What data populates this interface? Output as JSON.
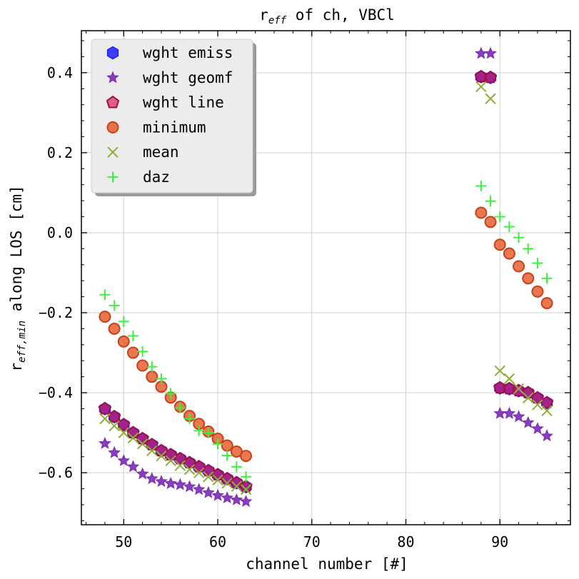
{
  "chart_data": {
    "type": "scatter",
    "title": "r",
    "title_sub": "eff",
    "title_rest": " of ch, VBCl",
    "xlabel": "channel number [#]",
    "ylabel_main": "r",
    "ylabel_sub": "eff,min",
    "ylabel_rest": " along LOS [cm]",
    "xlim": [
      45.5,
      97.5
    ],
    "ylim": [
      -0.73,
      0.505
    ],
    "xticks": [
      50,
      60,
      70,
      80,
      90
    ],
    "xtick_labels": [
      "50",
      "60",
      "70",
      "80",
      "90"
    ],
    "yticks": [
      0.4,
      0.2,
      0.0,
      -0.2,
      -0.4,
      -0.6
    ],
    "ytick_labels": [
      "0.4",
      "0.2",
      "0.0",
      "−0.2",
      "−0.4",
      "−0.6"
    ],
    "grid": true,
    "legend_position": "top-left",
    "series": [
      {
        "name": "wght emiss",
        "marker": "hexagon",
        "color": "#1f1fff",
        "x": [
          48,
          49,
          50,
          51,
          52,
          53,
          54,
          55,
          56,
          57,
          58,
          59,
          60,
          61,
          62,
          63,
          88,
          89,
          90,
          91,
          92,
          93,
          94,
          95
        ],
        "y": [
          -0.44,
          -0.46,
          -0.48,
          -0.5,
          -0.515,
          -0.53,
          -0.545,
          -0.555,
          -0.565,
          -0.575,
          -0.585,
          -0.595,
          -0.605,
          -0.615,
          -0.625,
          -0.635,
          0.39,
          0.388,
          -0.388,
          -0.39,
          -0.395,
          -0.4,
          -0.413,
          -0.425
        ]
      },
      {
        "name": "wght geomf",
        "marker": "star",
        "color": "#7b2ab5",
        "x": [
          48,
          49,
          50,
          51,
          52,
          53,
          54,
          55,
          56,
          57,
          58,
          59,
          60,
          61,
          62,
          63,
          88,
          89,
          90,
          91,
          92,
          93,
          94,
          95
        ],
        "y": [
          -0.527,
          -0.55,
          -0.57,
          -0.585,
          -0.603,
          -0.615,
          -0.622,
          -0.627,
          -0.63,
          -0.635,
          -0.642,
          -0.65,
          -0.657,
          -0.663,
          -0.668,
          -0.672,
          0.448,
          0.448,
          -0.452,
          -0.452,
          -0.46,
          -0.475,
          -0.49,
          -0.508
        ]
      },
      {
        "name": "wght line",
        "marker": "pentagon",
        "color": "#d8134f",
        "x": [
          48,
          49,
          50,
          51,
          52,
          53,
          54,
          55,
          56,
          57,
          58,
          59,
          60,
          61,
          62,
          63,
          88,
          89,
          90,
          91,
          92,
          93,
          94,
          95
        ],
        "y": [
          -0.44,
          -0.46,
          -0.48,
          -0.5,
          -0.515,
          -0.53,
          -0.545,
          -0.555,
          -0.565,
          -0.575,
          -0.585,
          -0.595,
          -0.605,
          -0.615,
          -0.625,
          -0.635,
          0.39,
          0.388,
          -0.388,
          -0.39,
          -0.395,
          -0.4,
          -0.413,
          -0.425
        ]
      },
      {
        "name": "minimum",
        "marker": "circle",
        "color": "#e0521f",
        "x": [
          48,
          49,
          50,
          51,
          52,
          53,
          54,
          55,
          56,
          57,
          58,
          59,
          60,
          61,
          62,
          63,
          88,
          89,
          90,
          91,
          92,
          93,
          94,
          95
        ],
        "y": [
          -0.21,
          -0.24,
          -0.272,
          -0.3,
          -0.332,
          -0.36,
          -0.385,
          -0.412,
          -0.435,
          -0.458,
          -0.478,
          -0.497,
          -0.515,
          -0.532,
          -0.547,
          -0.558,
          0.05,
          0.027,
          -0.03,
          -0.052,
          -0.084,
          -0.114,
          -0.147,
          -0.176
        ]
      },
      {
        "name": "mean",
        "marker": "x",
        "color": "#8cae3a",
        "x": [
          48,
          49,
          50,
          51,
          52,
          53,
          54,
          55,
          56,
          57,
          58,
          59,
          60,
          61,
          62,
          63,
          88,
          89,
          90,
          91,
          92,
          93,
          94,
          95
        ],
        "y": [
          -0.465,
          -0.483,
          -0.5,
          -0.513,
          -0.528,
          -0.545,
          -0.558,
          -0.57,
          -0.582,
          -0.592,
          -0.6,
          -0.61,
          -0.618,
          -0.626,
          -0.634,
          -0.642,
          0.365,
          0.335,
          -0.345,
          -0.365,
          -0.39,
          -0.413,
          -0.43,
          -0.445
        ]
      },
      {
        "name": "daz",
        "marker": "plus",
        "color": "#3bf23b",
        "x": [
          48,
          49,
          50,
          51,
          52,
          53,
          54,
          55,
          56,
          57,
          58,
          59,
          60,
          61,
          62,
          63,
          88,
          89,
          90,
          91,
          92,
          93,
          94,
          95
        ],
        "y": [
          -0.155,
          -0.182,
          -0.222,
          -0.258,
          -0.297,
          -0.335,
          -0.365,
          -0.402,
          -0.438,
          -0.465,
          -0.495,
          -0.5,
          -0.528,
          -0.557,
          -0.585,
          -0.61,
          0.117,
          0.079,
          0.04,
          0.015,
          -0.012,
          -0.04,
          -0.076,
          -0.114
        ]
      }
    ]
  }
}
